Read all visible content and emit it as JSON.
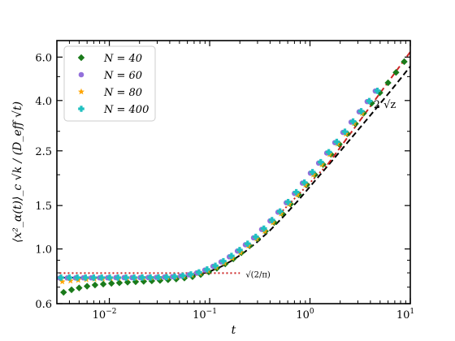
{
  "chart_data": {
    "type": "scatter",
    "title": "",
    "xlabel": "t",
    "ylabel": "⟨x²_α(t)⟩_c √k / (D_eff √t)",
    "xscale": "log",
    "yscale": "log",
    "xlim": [
      0.003,
      10
    ],
    "ylim": [
      0.6,
      7.0
    ],
    "x_ticks": [
      0.01,
      0.1,
      1,
      10
    ],
    "x_tick_labels": [
      "10",
      "10",
      "10",
      "10"
    ],
    "x_tick_exponents": [
      "−2",
      "−1",
      "0",
      "1"
    ],
    "y_ticks": [
      0.6,
      1.0,
      1.5,
      2.5,
      4.0,
      6.0
    ],
    "y_tick_labels": [
      "0.6",
      "1.0",
      "1.5",
      "2.5",
      "4.0",
      "6.0"
    ],
    "grid": false,
    "legend": {
      "position": "top-left"
    },
    "series": [
      {
        "name": "N = 40",
        "color": "#1a7a1a",
        "marker": "diamond",
        "x": [
          0.0035,
          0.0042,
          0.005,
          0.006,
          0.0072,
          0.0087,
          0.0105,
          0.0126,
          0.0152,
          0.0183,
          0.022,
          0.0265,
          0.032,
          0.0385,
          0.0464,
          0.056,
          0.0675,
          0.0814,
          0.098,
          0.118,
          0.143,
          0.172,
          0.207,
          0.25,
          0.3,
          0.36,
          0.44,
          0.53,
          0.64,
          0.77,
          0.93,
          1.12,
          1.35,
          1.62,
          1.96,
          2.36,
          2.84,
          3.42,
          4.12,
          4.97,
          6.0,
          7.2,
          8.7
        ],
        "y": [
          0.667,
          0.683,
          0.695,
          0.706,
          0.714,
          0.72,
          0.725,
          0.729,
          0.733,
          0.736,
          0.739,
          0.742,
          0.745,
          0.75,
          0.755,
          0.762,
          0.772,
          0.787,
          0.807,
          0.835,
          0.87,
          0.912,
          0.965,
          1.03,
          1.1,
          1.18,
          1.28,
          1.39,
          1.52,
          1.66,
          1.82,
          2.0,
          2.2,
          2.42,
          2.66,
          2.93,
          3.22,
          3.55,
          3.9,
          4.3,
          4.72,
          5.2,
          5.75
        ]
      },
      {
        "name": "N = 60",
        "color": "#9370db",
        "marker": "circle",
        "x": [
          0.0032,
          0.0038,
          0.0046,
          0.0055,
          0.0066,
          0.008,
          0.0096,
          0.0116,
          0.014,
          0.0168,
          0.0203,
          0.0244,
          0.0294,
          0.0354,
          0.0426,
          0.0513,
          0.0618,
          0.0744,
          0.0896,
          0.108,
          0.13,
          0.157,
          0.189,
          0.227,
          0.274,
          0.33,
          0.4,
          0.48,
          0.58,
          0.7,
          0.84,
          1.01,
          1.22,
          1.47,
          1.77,
          2.13,
          2.57,
          3.09,
          3.72,
          4.48
        ],
        "y": [
          0.762,
          0.763,
          0.763,
          0.764,
          0.764,
          0.764,
          0.764,
          0.765,
          0.765,
          0.765,
          0.765,
          0.766,
          0.767,
          0.769,
          0.772,
          0.777,
          0.786,
          0.8,
          0.821,
          0.85,
          0.886,
          0.929,
          0.981,
          1.04,
          1.11,
          1.2,
          1.3,
          1.41,
          1.54,
          1.68,
          1.85,
          2.03,
          2.23,
          2.45,
          2.7,
          2.97,
          3.27,
          3.6,
          3.96,
          4.37
        ]
      },
      {
        "name": "N = 80",
        "color": "#ffa500",
        "marker": "star",
        "x": [
          0.0034,
          0.0041,
          0.0049,
          0.0059,
          0.0071,
          0.0086,
          0.0103,
          0.0124,
          0.015,
          0.018,
          0.0217,
          0.0261,
          0.0315,
          0.0379,
          0.0457,
          0.055,
          0.0663,
          0.0798,
          0.0962,
          0.116,
          0.14,
          0.168,
          0.203,
          0.244,
          0.294,
          0.354,
          0.427,
          0.514,
          0.62,
          0.75,
          0.9,
          1.08,
          1.31,
          1.57,
          1.89,
          2.28,
          2.75,
          3.31
        ],
        "y": [
          0.737,
          0.743,
          0.748,
          0.752,
          0.755,
          0.757,
          0.759,
          0.76,
          0.761,
          0.762,
          0.763,
          0.764,
          0.765,
          0.767,
          0.77,
          0.775,
          0.783,
          0.796,
          0.815,
          0.842,
          0.876,
          0.918,
          0.968,
          1.03,
          1.1,
          1.18,
          1.28,
          1.39,
          1.52,
          1.66,
          1.82,
          2.0,
          2.2,
          2.42,
          2.67,
          2.93,
          3.23,
          3.55
        ]
      },
      {
        "name": "N = 400",
        "color": "#20c0c0",
        "marker": "plus",
        "x": [
          0.0033,
          0.004,
          0.0048,
          0.0058,
          0.007,
          0.0084,
          0.0101,
          0.0122,
          0.0147,
          0.0177,
          0.0213,
          0.0257,
          0.0309,
          0.0372,
          0.0448,
          0.054,
          0.065,
          0.0783,
          0.0943,
          0.114,
          0.137,
          0.165,
          0.199,
          0.239,
          0.288,
          0.347,
          0.418,
          0.503,
          0.606,
          0.73,
          0.88,
          1.06,
          1.28,
          1.54,
          1.85,
          2.23,
          2.69,
          3.24,
          3.9,
          4.7
        ],
        "y": [
          0.765,
          0.765,
          0.765,
          0.765,
          0.765,
          0.765,
          0.765,
          0.765,
          0.765,
          0.765,
          0.766,
          0.766,
          0.767,
          0.769,
          0.773,
          0.779,
          0.789,
          0.804,
          0.826,
          0.855,
          0.892,
          0.937,
          0.99,
          1.05,
          1.12,
          1.21,
          1.31,
          1.42,
          1.55,
          1.7,
          1.86,
          2.05,
          2.25,
          2.47,
          2.72,
          2.99,
          3.29,
          3.62,
          3.98,
          4.38
        ]
      }
    ],
    "reference_lines": [
      {
        "name": "theory",
        "style": "dashed",
        "color": "#000000",
        "x": [
          0.0032,
          0.01,
          0.02,
          0.04,
          0.06,
          0.08,
          0.1,
          0.13,
          0.17,
          0.22,
          0.3,
          0.4,
          0.55,
          0.75,
          1.0,
          1.4,
          2.0,
          3.0,
          4.5,
          6.5,
          10.0
        ],
        "y": [
          0.765,
          0.765,
          0.766,
          0.769,
          0.777,
          0.79,
          0.81,
          0.848,
          0.901,
          0.967,
          1.07,
          1.19,
          1.36,
          1.56,
          1.79,
          2.1,
          2.49,
          3.03,
          3.69,
          4.42,
          5.5
        ]
      },
      {
        "name": "late-time asymptote",
        "style": "dashed",
        "color": "#cc2222",
        "x": [
          1.5,
          10.0
        ],
        "y": [
          2.2,
          6.3
        ]
      },
      {
        "name": "intermediate asymptote",
        "style": "dotted",
        "color": "#cc2222",
        "x": [
          0.5,
          1.5
        ],
        "y": [
          1.39,
          2.2
        ]
      },
      {
        "name": "short-time plateau",
        "style": "dotted",
        "color": "#cc2222",
        "x": [
          0.0032,
          0.2
        ],
        "y": [
          0.798,
          0.798
        ]
      }
    ],
    "annotations": [
      {
        "text": "2 √z",
        "x": 4.3,
        "y": 3.9
      },
      {
        "text": "√(2/π)",
        "x": 0.22,
        "y": 0.798
      }
    ]
  }
}
